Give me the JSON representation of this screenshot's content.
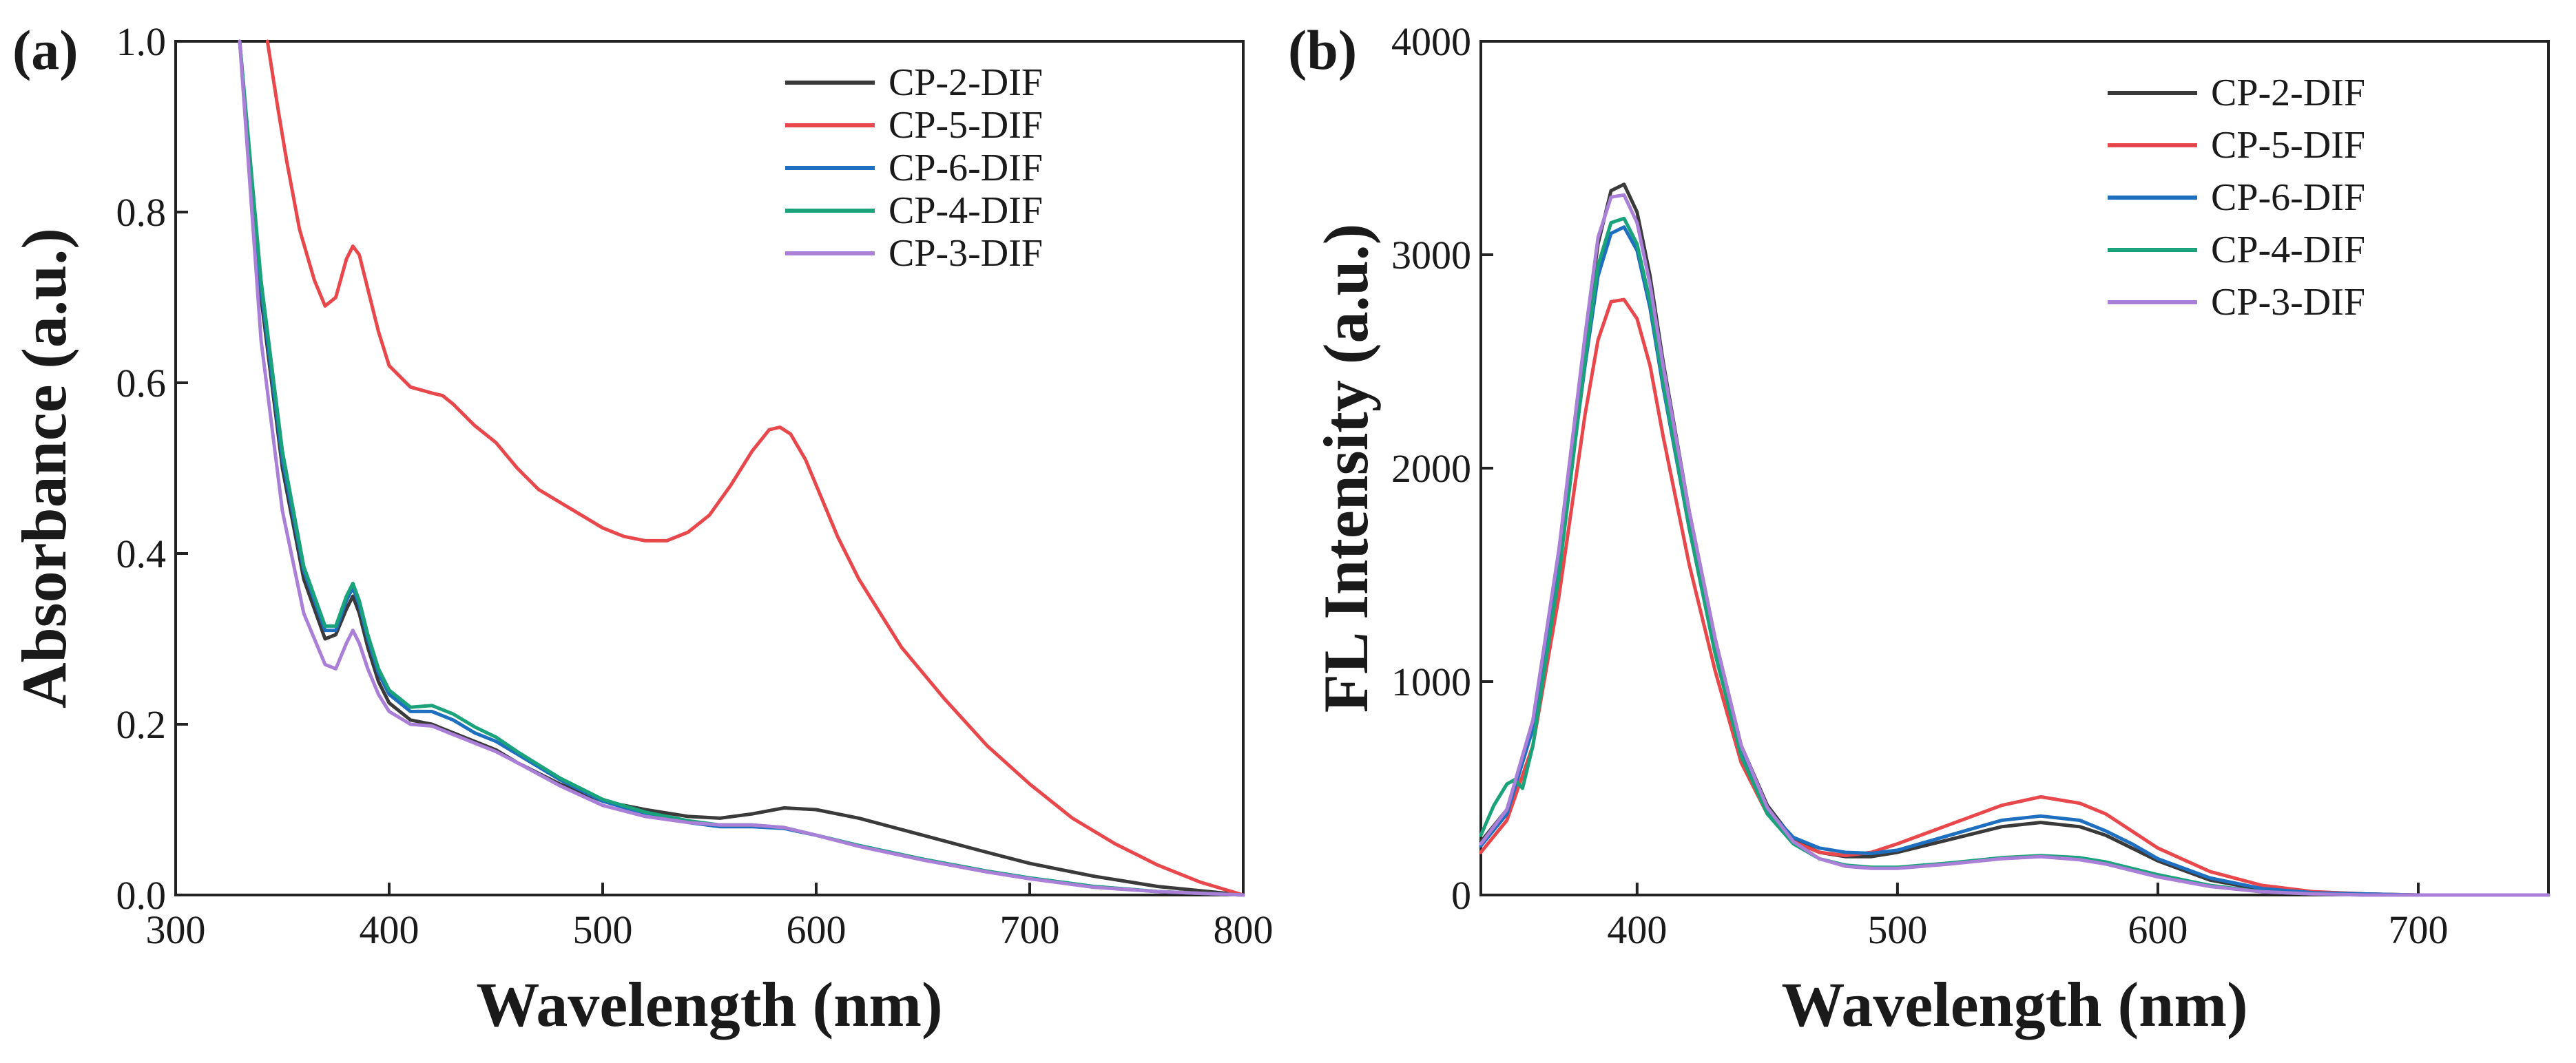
{
  "chart_data": [
    {
      "id": "a",
      "type": "line",
      "panel_label": "(a)",
      "xlabel": "Wavelength (nm)",
      "ylabel": "Absorbance (a.u.)",
      "xlim": [
        300,
        800
      ],
      "ylim": [
        0,
        1.0
      ],
      "xticks": [
        300,
        400,
        500,
        600,
        700,
        800
      ],
      "xtick_labels": [
        "300",
        "400",
        "500",
        "600",
        "700",
        "800"
      ],
      "yticks": [
        0,
        0.2,
        0.4,
        0.6,
        0.8,
        1.0
      ],
      "ytick_labels": [
        "0.0",
        "0.2",
        "0.4",
        "0.6",
        "0.8",
        "1.0"
      ],
      "legend_position": "top-right",
      "series": [
        {
          "name": "CP-2-DIF",
          "color": "#3a3a3a",
          "x": [
            330,
            340,
            350,
            360,
            370,
            375,
            380,
            383,
            386,
            390,
            395,
            400,
            410,
            420,
            430,
            440,
            450,
            460,
            480,
            500,
            520,
            540,
            555,
            570,
            585,
            600,
            620,
            650,
            680,
            700,
            730,
            760,
            800
          ],
          "y": [
            1.0,
            0.7,
            0.5,
            0.37,
            0.3,
            0.305,
            0.335,
            0.35,
            0.33,
            0.29,
            0.25,
            0.225,
            0.205,
            0.2,
            0.19,
            0.18,
            0.17,
            0.155,
            0.13,
            0.11,
            0.1,
            0.092,
            0.09,
            0.095,
            0.102,
            0.1,
            0.09,
            0.07,
            0.05,
            0.037,
            0.022,
            0.01,
            0.0
          ]
        },
        {
          "name": "CP-5-DIF",
          "color": "#e8474b",
          "x": [
            343,
            348,
            352,
            358,
            365,
            370,
            375,
            380,
            383,
            386,
            390,
            395,
            400,
            410,
            420,
            425,
            430,
            440,
            450,
            460,
            470,
            480,
            490,
            500,
            510,
            520,
            530,
            540,
            550,
            560,
            570,
            578,
            583,
            588,
            595,
            600,
            610,
            620,
            640,
            660,
            680,
            700,
            720,
            740,
            760,
            780,
            800
          ],
          "y": [
            1.0,
            0.92,
            0.86,
            0.78,
            0.72,
            0.69,
            0.7,
            0.745,
            0.76,
            0.75,
            0.71,
            0.66,
            0.62,
            0.595,
            0.588,
            0.585,
            0.575,
            0.55,
            0.53,
            0.5,
            0.475,
            0.46,
            0.445,
            0.43,
            0.42,
            0.415,
            0.415,
            0.425,
            0.445,
            0.48,
            0.52,
            0.545,
            0.548,
            0.54,
            0.51,
            0.48,
            0.42,
            0.37,
            0.29,
            0.23,
            0.175,
            0.13,
            0.09,
            0.06,
            0.035,
            0.015,
            0.0
          ]
        },
        {
          "name": "CP-6-DIF",
          "color": "#1f6fc0",
          "x": [
            330,
            340,
            350,
            360,
            370,
            375,
            380,
            383,
            386,
            390,
            395,
            400,
            410,
            420,
            430,
            440,
            450,
            460,
            480,
            500,
            520,
            540,
            555,
            570,
            585,
            600,
            620,
            650,
            680,
            700,
            730,
            760,
            800
          ],
          "y": [
            1.0,
            0.71,
            0.51,
            0.38,
            0.31,
            0.31,
            0.345,
            0.36,
            0.34,
            0.3,
            0.26,
            0.235,
            0.215,
            0.215,
            0.205,
            0.19,
            0.18,
            0.165,
            0.135,
            0.11,
            0.095,
            0.085,
            0.08,
            0.08,
            0.078,
            0.07,
            0.058,
            0.042,
            0.028,
            0.02,
            0.01,
            0.004,
            0.0
          ]
        },
        {
          "name": "CP-4-DIF",
          "color": "#1aa37a",
          "x": [
            330,
            340,
            350,
            360,
            370,
            375,
            380,
            383,
            386,
            390,
            395,
            400,
            410,
            420,
            430,
            440,
            450,
            460,
            480,
            500,
            520,
            540,
            555,
            570,
            585,
            600,
            620,
            650,
            680,
            700,
            730,
            760,
            800
          ],
          "y": [
            1.0,
            0.72,
            0.52,
            0.385,
            0.315,
            0.315,
            0.35,
            0.365,
            0.345,
            0.305,
            0.265,
            0.24,
            0.22,
            0.222,
            0.212,
            0.197,
            0.185,
            0.168,
            0.137,
            0.112,
            0.097,
            0.087,
            0.082,
            0.082,
            0.079,
            0.07,
            0.058,
            0.042,
            0.028,
            0.02,
            0.01,
            0.004,
            0.0
          ]
        },
        {
          "name": "CP-3-DIF",
          "color": "#a97fd8",
          "x": [
            330,
            340,
            350,
            360,
            370,
            375,
            380,
            383,
            386,
            390,
            395,
            400,
            410,
            420,
            430,
            440,
            450,
            460,
            480,
            500,
            520,
            540,
            555,
            570,
            585,
            600,
            620,
            650,
            680,
            700,
            730,
            760,
            800
          ],
          "y": [
            1.0,
            0.65,
            0.45,
            0.33,
            0.27,
            0.265,
            0.295,
            0.31,
            0.295,
            0.265,
            0.235,
            0.215,
            0.2,
            0.198,
            0.188,
            0.178,
            0.168,
            0.155,
            0.128,
            0.105,
            0.092,
            0.085,
            0.082,
            0.082,
            0.079,
            0.07,
            0.057,
            0.041,
            0.027,
            0.019,
            0.009,
            0.004,
            0.0
          ]
        }
      ]
    },
    {
      "id": "b",
      "type": "line",
      "panel_label": "(b)",
      "xlabel": "Wavelength (nm)",
      "ylabel": "FL Intensity (a.u.)",
      "xlim": [
        340,
        750
      ],
      "ylim": [
        0,
        4000
      ],
      "xticks": [
        400,
        500,
        600,
        700
      ],
      "xtick_labels": [
        "400",
        "500",
        "600",
        "700"
      ],
      "yticks": [
        0,
        1000,
        2000,
        3000,
        4000
      ],
      "ytick_labels": [
        "0",
        "1000",
        "2000",
        "3000",
        "4000"
      ],
      "legend_position": "top-right",
      "series": [
        {
          "name": "CP-2-DIF",
          "color": "#3a3a3a",
          "x": [
            340,
            350,
            360,
            370,
            380,
            385,
            390,
            395,
            400,
            405,
            410,
            420,
            430,
            440,
            450,
            460,
            470,
            480,
            490,
            500,
            520,
            540,
            555,
            570,
            580,
            590,
            600,
            620,
            640,
            660,
            680,
            700,
            750
          ],
          "y": [
            250,
            400,
            800,
            1600,
            2600,
            3050,
            3300,
            3330,
            3200,
            2900,
            2500,
            1800,
            1200,
            700,
            420,
            260,
            200,
            180,
            180,
            200,
            260,
            320,
            340,
            320,
            280,
            220,
            160,
            70,
            25,
            10,
            5,
            0,
            0
          ]
        },
        {
          "name": "CP-5-DIF",
          "color": "#e8474b",
          "x": [
            340,
            350,
            360,
            370,
            380,
            385,
            390,
            395,
            400,
            405,
            410,
            420,
            430,
            440,
            450,
            460,
            470,
            480,
            490,
            500,
            520,
            540,
            555,
            570,
            580,
            590,
            600,
            620,
            640,
            660,
            680,
            700,
            750
          ],
          "y": [
            200,
            350,
            700,
            1400,
            2250,
            2600,
            2780,
            2790,
            2700,
            2480,
            2150,
            1550,
            1050,
            620,
            380,
            250,
            200,
            185,
            200,
            240,
            330,
            420,
            460,
            430,
            380,
            300,
            220,
            110,
            45,
            15,
            5,
            0,
            0
          ]
        },
        {
          "name": "CP-6-DIF",
          "color": "#1f6fc0",
          "x": [
            340,
            350,
            360,
            370,
            380,
            385,
            390,
            395,
            400,
            405,
            410,
            420,
            430,
            440,
            450,
            460,
            470,
            480,
            490,
            500,
            520,
            540,
            555,
            570,
            580,
            590,
            600,
            620,
            640,
            660,
            680,
            700,
            750
          ],
          "y": [
            230,
            380,
            780,
            1550,
            2480,
            2900,
            3100,
            3130,
            3020,
            2750,
            2380,
            1720,
            1150,
            680,
            400,
            270,
            220,
            200,
            195,
            210,
            280,
            350,
            370,
            350,
            300,
            240,
            170,
            80,
            30,
            10,
            5,
            0,
            0
          ]
        },
        {
          "name": "CP-4-DIF",
          "color": "#1aa37a",
          "x": [
            340,
            345,
            350,
            353,
            356,
            360,
            370,
            380,
            385,
            390,
            395,
            400,
            405,
            410,
            420,
            430,
            440,
            450,
            460,
            470,
            480,
            490,
            500,
            520,
            540,
            555,
            570,
            580,
            590,
            600,
            620,
            640,
            660,
            680,
            700,
            750
          ],
          "y": [
            280,
            420,
            520,
            540,
            500,
            700,
            1500,
            2500,
            2950,
            3150,
            3170,
            3050,
            2780,
            2400,
            1720,
            1130,
            650,
            380,
            240,
            170,
            140,
            130,
            130,
            150,
            175,
            185,
            175,
            155,
            125,
            95,
            45,
            15,
            5,
            0,
            0,
            0
          ]
        },
        {
          "name": "CP-3-DIF",
          "color": "#a97fd8",
          "x": [
            340,
            350,
            360,
            370,
            380,
            385,
            390,
            395,
            400,
            405,
            410,
            420,
            430,
            440,
            450,
            460,
            470,
            480,
            490,
            500,
            520,
            540,
            555,
            570,
            580,
            590,
            600,
            620,
            640,
            660,
            680,
            700,
            750
          ],
          "y": [
            240,
            400,
            820,
            1620,
            2620,
            3080,
            3270,
            3280,
            3150,
            2860,
            2480,
            1800,
            1200,
            700,
            410,
            250,
            170,
            135,
            125,
            125,
            145,
            170,
            180,
            165,
            145,
            115,
            85,
            40,
            15,
            5,
            0,
            0,
            0
          ]
        }
      ]
    }
  ]
}
